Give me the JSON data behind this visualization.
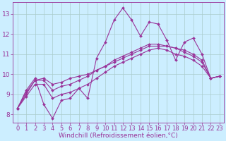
{
  "xlabel": "Windchill (Refroidissement éolien,°C)",
  "background_color": "#cceeff",
  "line_color": "#993399",
  "x_hours": [
    0,
    1,
    2,
    3,
    4,
    5,
    6,
    7,
    8,
    9,
    10,
    11,
    12,
    13,
    14,
    15,
    16,
    17,
    18,
    19,
    20,
    21,
    22,
    23
  ],
  "line1": [
    8.3,
    9.2,
    9.8,
    8.5,
    7.8,
    8.7,
    8.8,
    9.3,
    8.8,
    10.8,
    11.6,
    12.7,
    13.3,
    12.7,
    11.9,
    12.6,
    12.5,
    11.7,
    10.7,
    11.6,
    11.8,
    11.0,
    9.8,
    9.9
  ],
  "line2": [
    8.3,
    8.9,
    9.5,
    9.5,
    8.8,
    9.0,
    9.1,
    9.3,
    9.5,
    9.8,
    10.1,
    10.4,
    10.6,
    10.8,
    11.0,
    11.2,
    11.3,
    11.2,
    11.0,
    10.9,
    10.7,
    10.4,
    9.8,
    9.9
  ],
  "line3": [
    8.3,
    9.0,
    9.7,
    9.7,
    9.2,
    9.4,
    9.5,
    9.7,
    9.9,
    10.2,
    10.4,
    10.7,
    10.9,
    11.1,
    11.3,
    11.5,
    11.5,
    11.4,
    11.3,
    11.1,
    10.9,
    10.6,
    9.8,
    9.9
  ],
  "line4": [
    8.3,
    9.1,
    9.7,
    9.8,
    9.5,
    9.6,
    9.8,
    9.9,
    10.0,
    10.2,
    10.4,
    10.6,
    10.8,
    11.0,
    11.2,
    11.4,
    11.4,
    11.4,
    11.3,
    11.2,
    11.0,
    10.7,
    9.8,
    9.9
  ],
  "ylim": [
    7.6,
    13.6
  ],
  "yticks": [
    8,
    9,
    10,
    11,
    12,
    13
  ],
  "xticks": [
    0,
    1,
    2,
    3,
    4,
    5,
    6,
    7,
    8,
    9,
    10,
    11,
    12,
    13,
    14,
    15,
    16,
    17,
    18,
    19,
    20,
    21,
    22,
    23
  ],
  "grid_color": "#aacccc",
  "markersize": 2.0,
  "linewidth": 0.8,
  "font_size": 6.5
}
